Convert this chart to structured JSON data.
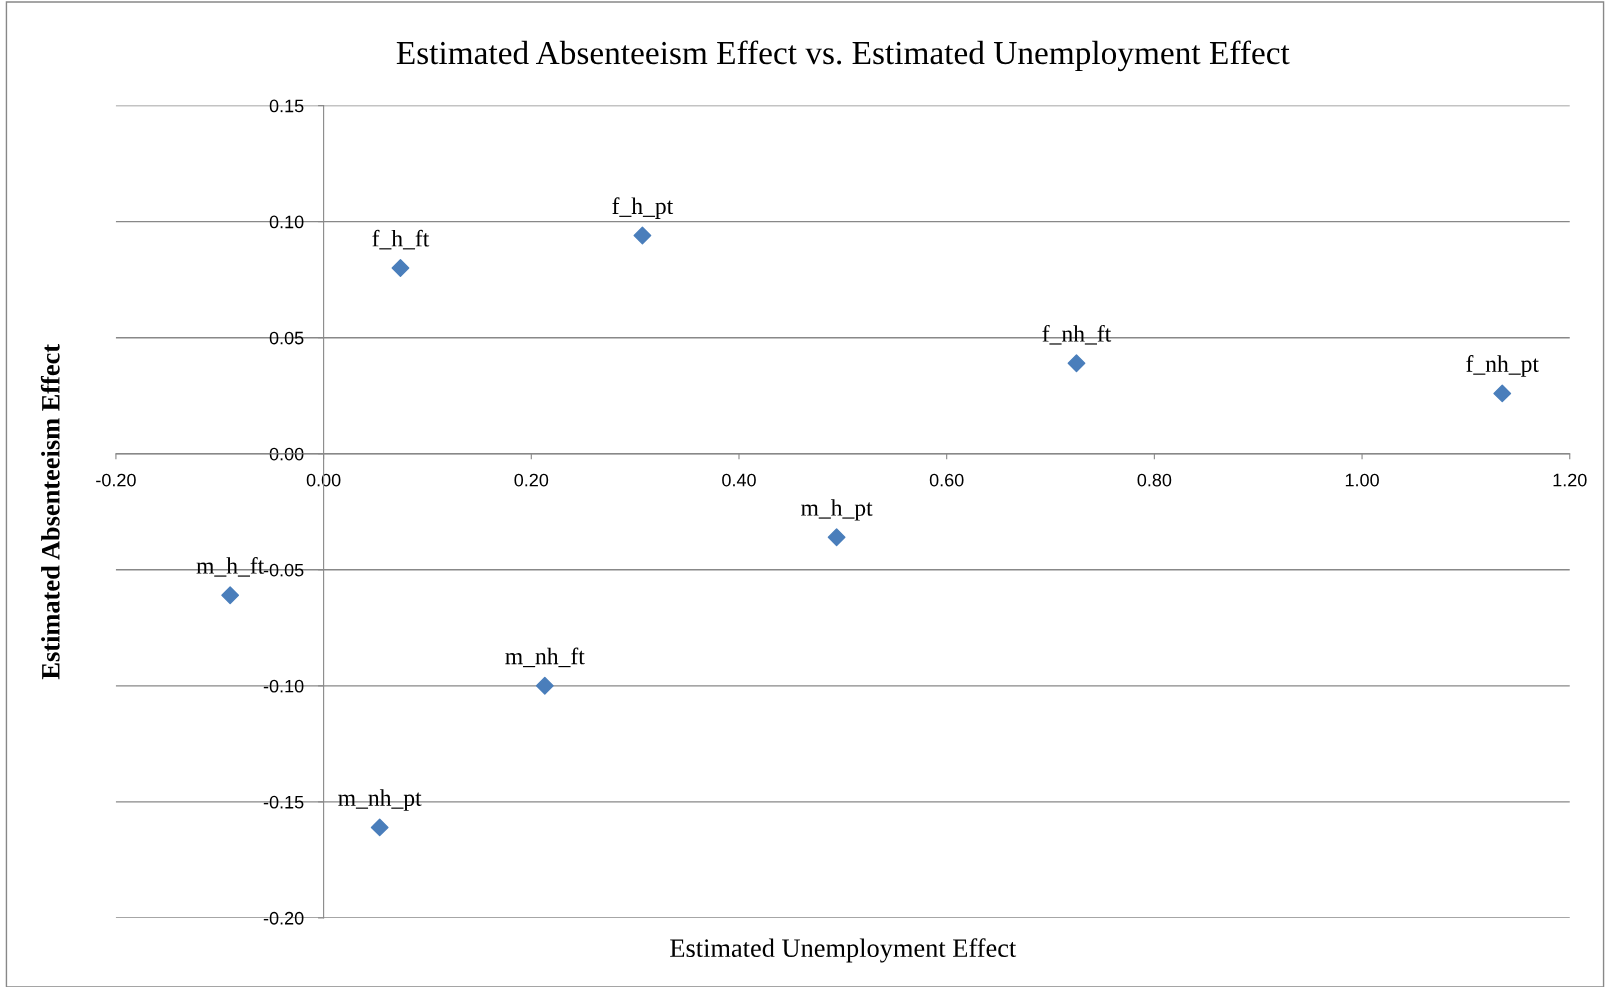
{
  "chart_data": {
    "type": "scatter",
    "title": "Estimated Absenteeism Effect vs. Estimated Unemployment Effect",
    "xlabel": "Estimated Unemployment Effect",
    "ylabel": "Estimated Absenteeism Effect",
    "series": [
      {
        "color": "#4a7ebb",
        "x": [
          0.074,
          0.307,
          0.725,
          1.135,
          0.494,
          -0.09,
          0.213,
          0.054
        ],
        "values": [
          0.08,
          0.094,
          0.039,
          0.026,
          -0.036,
          -0.061,
          -0.1,
          -0.161
        ]
      }
    ],
    "annotations": [
      {
        "text": "f_h_ft",
        "x": 0.074,
        "y": 0.08
      },
      {
        "text": "f_h_pt",
        "x": 0.307,
        "y": 0.094
      },
      {
        "text": "f_nh_ft",
        "x": 0.725,
        "y": 0.039
      },
      {
        "text": "f_nh_pt",
        "x": 1.135,
        "y": 0.026
      },
      {
        "text": "m_h_pt",
        "x": 0.494,
        "y": -0.036
      },
      {
        "text": "m_h_ft",
        "x": -0.09,
        "y": -0.061
      },
      {
        "text": "m_nh_ft",
        "x": 0.213,
        "y": -0.1
      },
      {
        "text": "m_nh_pt",
        "x": 0.054,
        "y": -0.161
      }
    ],
    "xlim": [
      -0.2,
      1.2
    ],
    "xticks": [
      {
        "value": -0.2,
        "label": "-0.20"
      },
      {
        "value": 0,
        "label": "0.00"
      },
      {
        "value": 0.2,
        "label": "0.20"
      },
      {
        "value": 0.4,
        "label": "0.40"
      },
      {
        "value": 0.6,
        "label": "0.60"
      },
      {
        "value": 0.8,
        "label": "0.80"
      },
      {
        "value": 1.0,
        "label": "1.00"
      },
      {
        "value": 1.2,
        "label": "1.20"
      }
    ],
    "ylim": [
      -0.2,
      0.15
    ],
    "yticks": [
      {
        "value": -0.2,
        "label": "-0.20"
      },
      {
        "value": -0.15,
        "label": "-0.15"
      },
      {
        "value": -0.1,
        "label": "-0.10"
      },
      {
        "value": -0.05,
        "label": "-0.05"
      },
      {
        "value": 0,
        "label": "0.00"
      },
      {
        "value": 0.05,
        "label": "0.05"
      },
      {
        "value": 0.1,
        "label": "0.10"
      },
      {
        "value": 0.15,
        "label": "0.15"
      }
    ],
    "grid": "y",
    "marker": "diamond"
  }
}
